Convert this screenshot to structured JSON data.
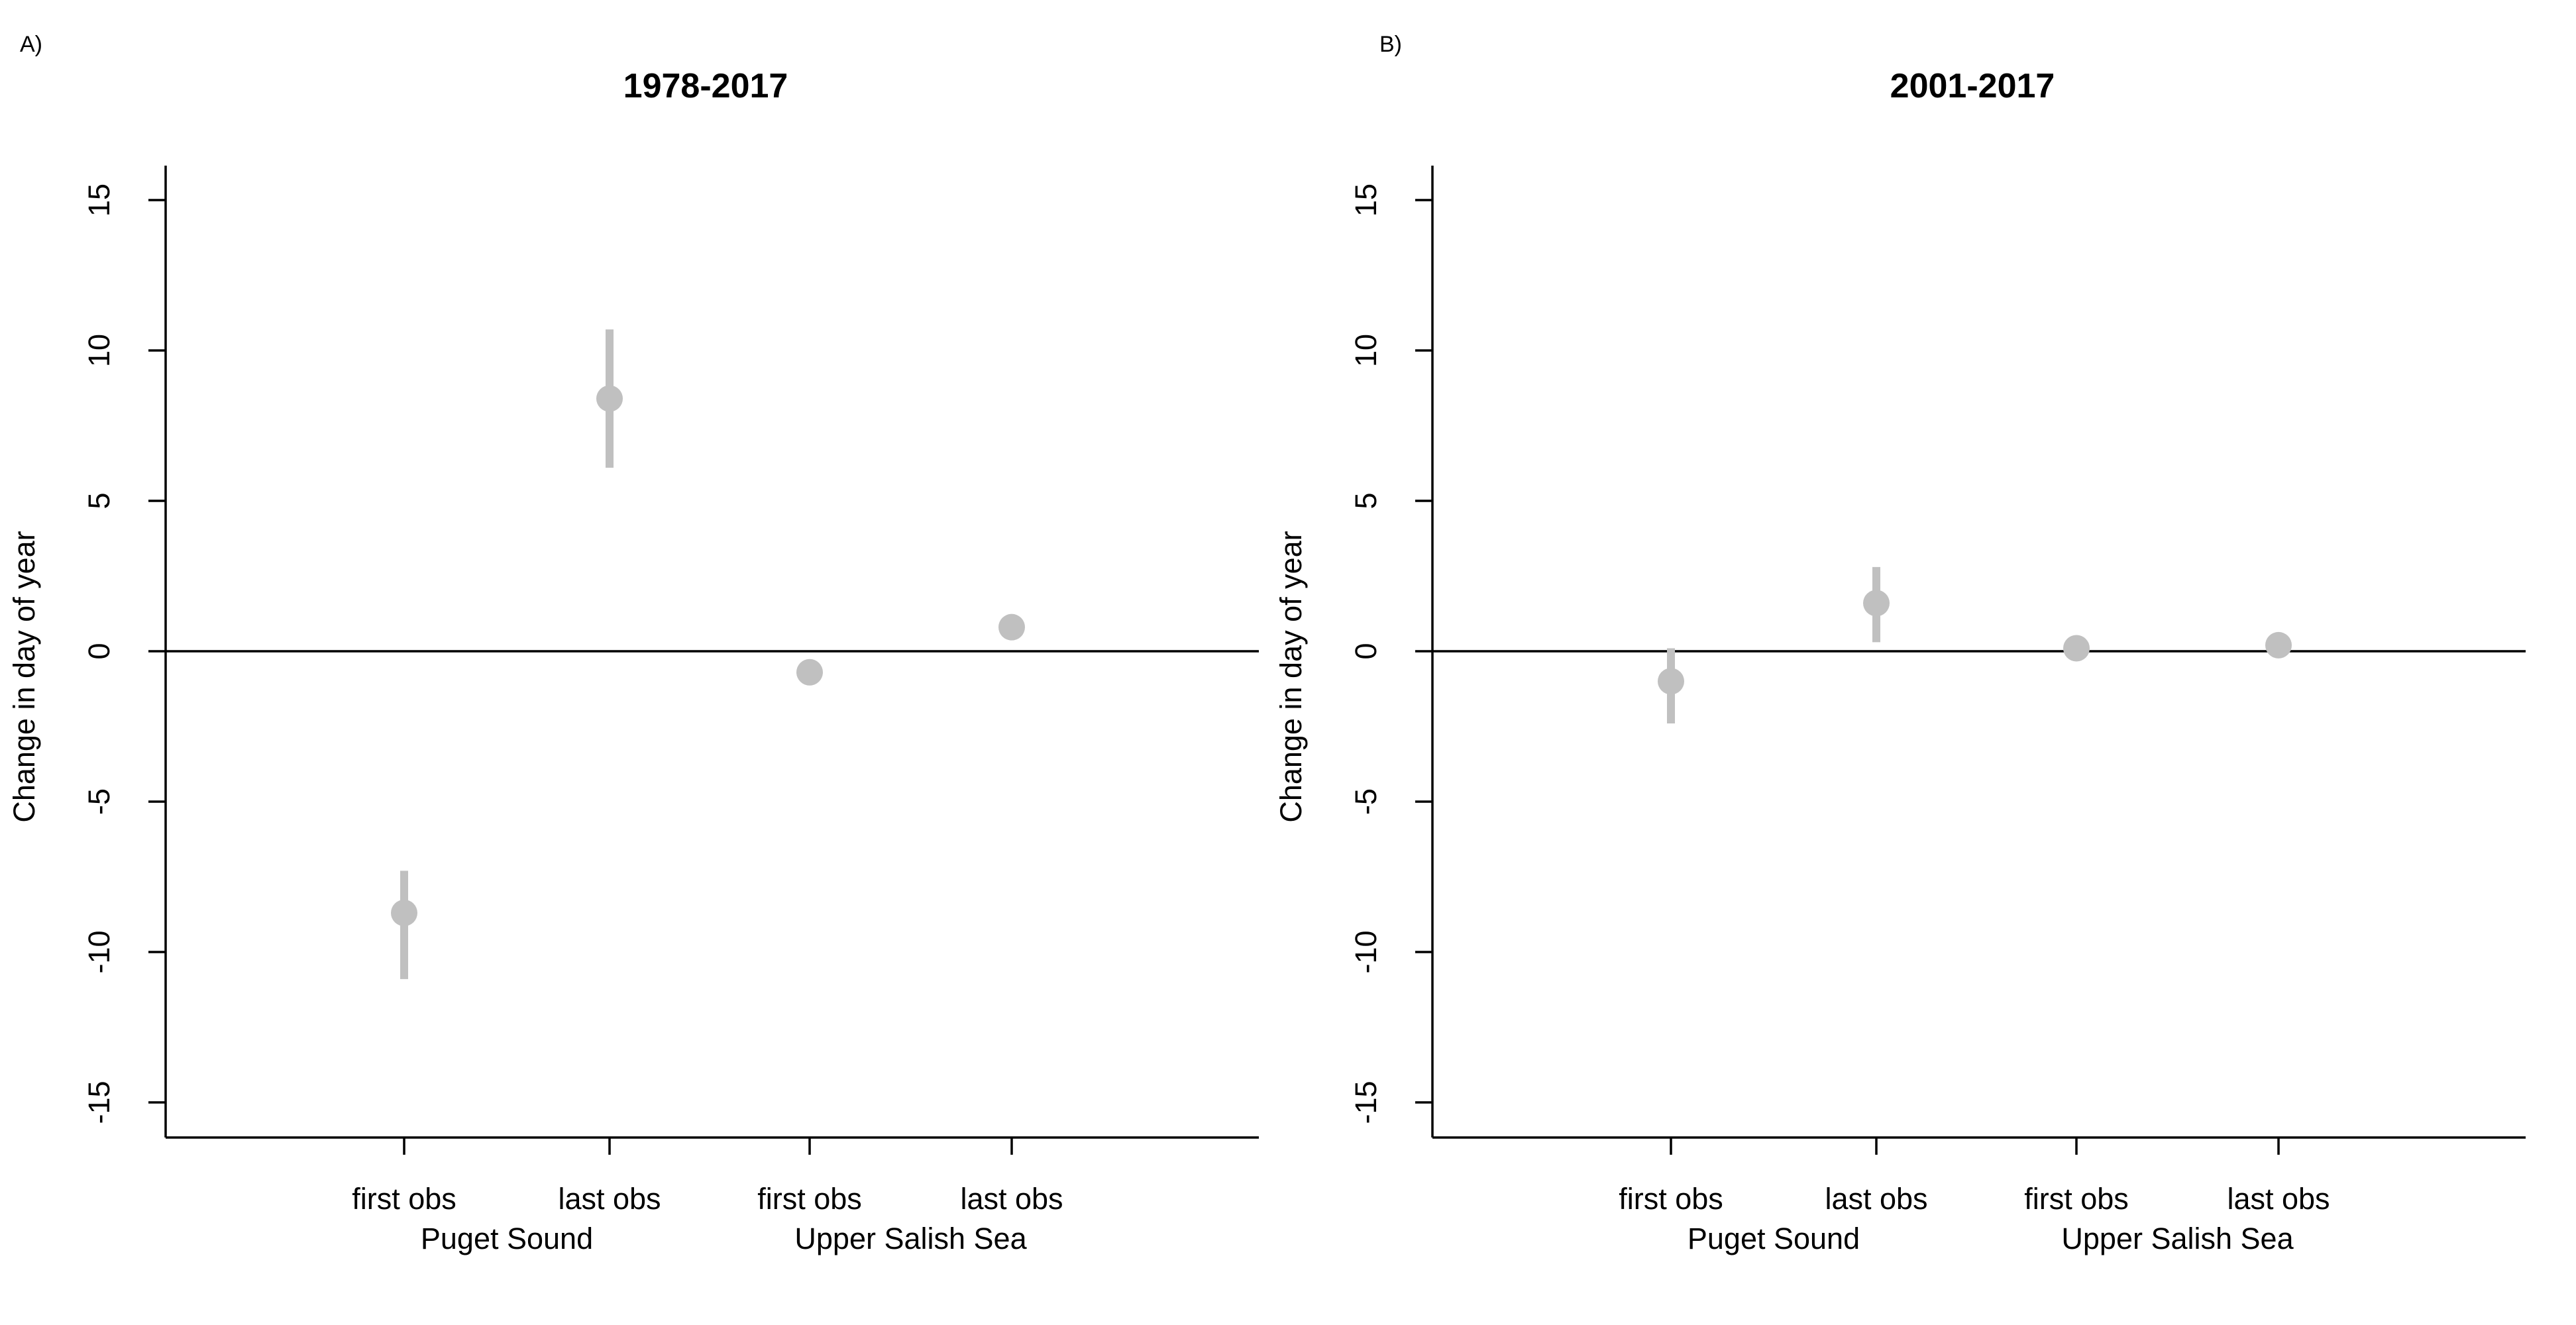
{
  "chart_data": [
    {
      "type": "scatter",
      "panel_label": "A)",
      "title": "1978-2017",
      "ylabel": "Change in day of year",
      "ylim": [
        -16,
        16
      ],
      "yticks": [
        15,
        10,
        5,
        0,
        -5,
        -10,
        -15
      ],
      "reference_line_y": 0,
      "grid": false,
      "legend": "none",
      "color": "#c0c0c0",
      "categories": [
        "first obs",
        "last obs",
        "first obs",
        "last obs"
      ],
      "groups": [
        {
          "label": "Puget Sound",
          "categories": [
            0,
            1
          ]
        },
        {
          "label": "Upper Salish Sea",
          "categories": [
            2,
            3
          ]
        }
      ],
      "points": [
        {
          "category": "first obs",
          "group": "Puget Sound",
          "y": -8.7,
          "lower": -10.9,
          "upper": -7.3
        },
        {
          "category": "last obs",
          "group": "Puget Sound",
          "y": 8.4,
          "lower": 6.1,
          "upper": 10.7
        },
        {
          "category": "first obs",
          "group": "Upper Salish Sea",
          "y": -0.7,
          "lower": -0.8,
          "upper": -0.6
        },
        {
          "category": "last obs",
          "group": "Upper Salish Sea",
          "y": 0.8,
          "lower": 0.7,
          "upper": 0.9
        }
      ]
    },
    {
      "type": "scatter",
      "panel_label": "B)",
      "title": "2001-2017",
      "ylabel": "Change in day of year",
      "ylim": [
        -16,
        16
      ],
      "yticks": [
        15,
        10,
        5,
        0,
        -5,
        -10,
        -15
      ],
      "reference_line_y": 0,
      "grid": false,
      "legend": "none",
      "color": "#c0c0c0",
      "categories": [
        "first obs",
        "last obs",
        "first obs",
        "last obs"
      ],
      "groups": [
        {
          "label": "Puget Sound",
          "categories": [
            0,
            1
          ]
        },
        {
          "label": "Upper Salish Sea",
          "categories": [
            2,
            3
          ]
        }
      ],
      "points": [
        {
          "category": "first obs",
          "group": "Puget Sound",
          "y": -1.0,
          "lower": -2.4,
          "upper": 0.1
        },
        {
          "category": "last obs",
          "group": "Puget Sound",
          "y": 1.6,
          "lower": 0.3,
          "upper": 2.8
        },
        {
          "category": "first obs",
          "group": "Upper Salish Sea",
          "y": 0.1,
          "lower": 0.0,
          "upper": 0.2
        },
        {
          "category": "last obs",
          "group": "Upper Salish Sea",
          "y": 0.2,
          "lower": 0.1,
          "upper": 0.3
        }
      ]
    }
  ]
}
